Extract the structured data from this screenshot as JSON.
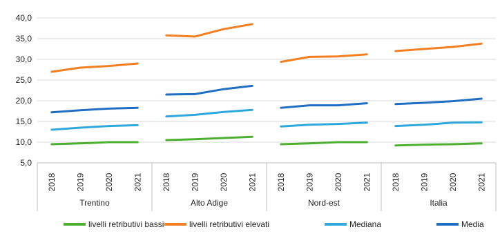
{
  "chart_data": {
    "type": "line",
    "y_ticks": [
      "40,0",
      "35,0",
      "30,0",
      "25,0",
      "20,0",
      "15,0",
      "10,0",
      "5,0"
    ],
    "ylim": [
      5,
      40
    ],
    "groups": [
      {
        "label": "Trentino",
        "years": [
          "2018",
          "2019",
          "2020",
          "2021"
        ]
      },
      {
        "label": "Alto Adige",
        "years": [
          "2018",
          "2019",
          "2020",
          "2021"
        ]
      },
      {
        "label": "Nord-est",
        "years": [
          "2018",
          "2019",
          "2020",
          "2021"
        ]
      },
      {
        "label": "Italia",
        "years": [
          "2018",
          "2019",
          "2020",
          "2021"
        ]
      }
    ],
    "series": [
      {
        "name": "livelli retributivi bassi",
        "color": "#4caf2f",
        "values": [
          [
            9.5,
            9.7,
            10.0,
            10.0
          ],
          [
            10.5,
            10.7,
            11.0,
            11.3
          ],
          [
            9.5,
            9.7,
            10.0,
            10.0
          ],
          [
            9.2,
            9.4,
            9.5,
            9.7
          ]
        ]
      },
      {
        "name": "livelli retributivi elevati",
        "color": "#f47f22",
        "values": [
          [
            27.0,
            28.0,
            28.4,
            29.0
          ],
          [
            35.8,
            35.5,
            37.3,
            38.5
          ],
          [
            29.4,
            30.6,
            30.7,
            31.2
          ],
          [
            32.0,
            32.5,
            33.0,
            33.8
          ]
        ]
      },
      {
        "name": "Mediana",
        "color": "#2ea8dc",
        "values": [
          [
            13.0,
            13.5,
            13.9,
            14.1
          ],
          [
            16.2,
            16.6,
            17.3,
            17.8
          ],
          [
            13.8,
            14.2,
            14.4,
            14.7
          ],
          [
            13.9,
            14.2,
            14.7,
            14.8
          ]
        ]
      },
      {
        "name": "Media",
        "color": "#1f6ec2",
        "values": [
          [
            17.2,
            17.7,
            18.1,
            18.3
          ],
          [
            21.5,
            21.6,
            22.8,
            23.6
          ],
          [
            18.3,
            18.9,
            18.9,
            19.4
          ],
          [
            19.2,
            19.5,
            19.9,
            20.5
          ]
        ]
      }
    ],
    "legend_position": "bottom",
    "grid": "horizontal"
  }
}
